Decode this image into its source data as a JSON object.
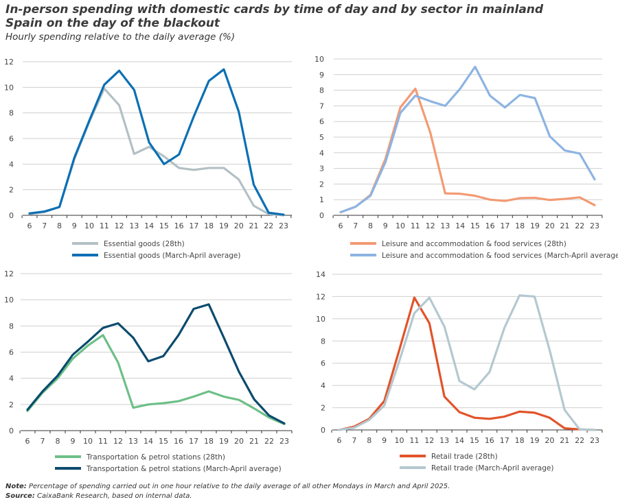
{
  "title": "In-person spending with domestic cards by time of day and by sector in mainland Spain on the day of the blackout",
  "subtitle": "Hourly spending relative to the daily average (%)",
  "note_label": "Note:",
  "note_text": " Percentage of spending carried out in one hour relative to the daily average of all other Mondays in March and April 2025.",
  "source_label": "Source:",
  "source_text": " CaixaBank Research, based on internal data.",
  "chart_data": [
    {
      "type": "line",
      "x": [
        6,
        7,
        8,
        9,
        10,
        11,
        12,
        13,
        14,
        15,
        16,
        17,
        18,
        19,
        20,
        21,
        22,
        23
      ],
      "ylim": [
        0,
        12
      ],
      "yticks": [
        0,
        2,
        4,
        6,
        8,
        10,
        12
      ],
      "grid": true,
      "legend": "bottom",
      "series": [
        {
          "name": "Essential goods (28th)",
          "color": "#b3c0c4",
          "values": [
            0.1,
            0.25,
            0.65,
            4.4,
            7.3,
            9.9,
            8.6,
            4.8,
            5.35,
            4.6,
            3.7,
            3.55,
            3.7,
            3.7,
            2.8,
            0.75,
            0.1,
            0.0
          ]
        },
        {
          "name": "Essential goods (March-April average)",
          "color": "#0a6fb4",
          "values": [
            0.15,
            0.3,
            0.65,
            4.5,
            7.4,
            10.2,
            11.3,
            9.8,
            5.7,
            4.0,
            4.75,
            7.75,
            10.5,
            11.4,
            8.1,
            2.4,
            0.2,
            0.05
          ]
        }
      ]
    },
    {
      "type": "line",
      "x": [
        6,
        7,
        8,
        9,
        10,
        11,
        12,
        13,
        14,
        15,
        16,
        17,
        18,
        19,
        20,
        21,
        22,
        23
      ],
      "ylim": [
        0,
        10
      ],
      "yticks": [
        0,
        1,
        2,
        3,
        4,
        5,
        6,
        7,
        8,
        9,
        10
      ],
      "grid": true,
      "legend": "bottom",
      "series": [
        {
          "name": "Leisure and accommodation & food services (28th)",
          "color": "#f39a73",
          "values": [
            0.2,
            0.55,
            1.3,
            3.6,
            6.9,
            8.1,
            5.3,
            1.4,
            1.38,
            1.25,
            1.0,
            0.92,
            1.1,
            1.12,
            0.98,
            1.05,
            1.15,
            0.65
          ]
        },
        {
          "name": "Leisure and accommodation & food services (March-April average)",
          "color": "#8db4e2",
          "values": [
            0.2,
            0.55,
            1.25,
            3.4,
            6.55,
            7.65,
            7.3,
            7.0,
            8.1,
            9.5,
            7.65,
            6.9,
            7.7,
            7.5,
            5.05,
            4.15,
            3.95,
            2.3
          ]
        }
      ]
    },
    {
      "type": "line",
      "x": [
        6,
        7,
        8,
        9,
        10,
        11,
        12,
        13,
        14,
        15,
        16,
        17,
        18,
        19,
        20,
        21,
        22,
        23
      ],
      "ylim": [
        0,
        12
      ],
      "yticks": [
        0,
        2,
        4,
        6,
        8,
        10,
        12
      ],
      "grid": true,
      "legend": "bottom",
      "series": [
        {
          "name": "Transportation & petrol stations (28th)",
          "color": "#6dbf87",
          "values": [
            1.5,
            2.9,
            4.0,
            5.5,
            6.5,
            7.3,
            5.2,
            1.75,
            2.0,
            2.1,
            2.25,
            2.6,
            3.0,
            2.6,
            2.35,
            1.7,
            1.0,
            0.5
          ]
        },
        {
          "name": "Transportation & petrol stations (March-April average)",
          "color": "#0b4b6e",
          "values": [
            1.6,
            3.0,
            4.2,
            5.8,
            6.8,
            7.85,
            8.2,
            7.1,
            5.3,
            5.7,
            7.3,
            9.3,
            9.65,
            7.1,
            4.5,
            2.4,
            1.15,
            0.55
          ]
        }
      ]
    },
    {
      "type": "line",
      "x": [
        6,
        7,
        8,
        9,
        10,
        11,
        12,
        13,
        14,
        15,
        16,
        17,
        18,
        19,
        20,
        21,
        22,
        23
      ],
      "ylim": [
        0,
        14
      ],
      "yticks": [
        0,
        2,
        4,
        6,
        8,
        10,
        12,
        14
      ],
      "grid": true,
      "legend": "bottom",
      "series": [
        {
          "name": "Retail trade (28th)",
          "color": "#e2532a",
          "values": [
            0,
            0.3,
            1.0,
            2.6,
            7.2,
            11.9,
            9.6,
            3.0,
            1.6,
            1.1,
            1.0,
            1.2,
            1.65,
            1.55,
            1.1,
            0.15,
            0.05,
            0
          ]
        },
        {
          "name": "Retail trade (March-April average)",
          "color": "#b4c8d0",
          "values": [
            0,
            0.2,
            0.9,
            2.2,
            6.2,
            10.5,
            11.9,
            9.3,
            4.4,
            3.65,
            5.2,
            9.2,
            12.1,
            12.0,
            7.2,
            1.8,
            0.05,
            0
          ]
        }
      ]
    }
  ]
}
